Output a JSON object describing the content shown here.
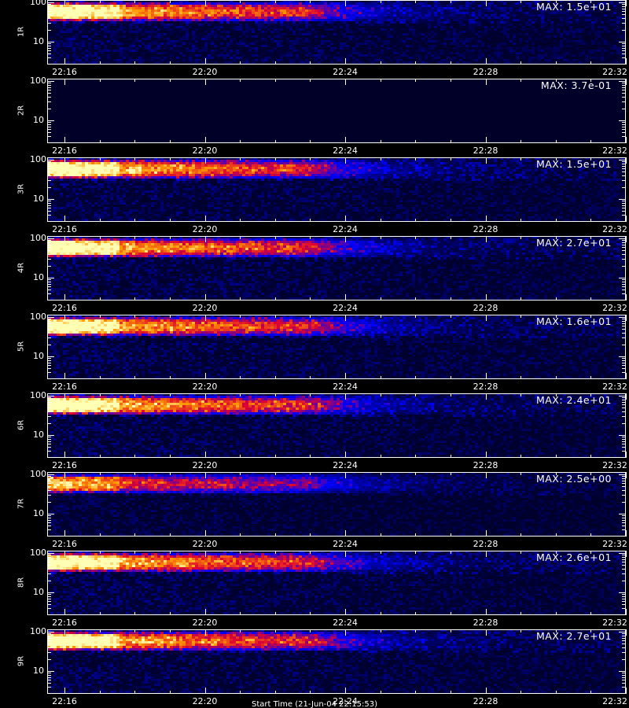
{
  "chart_data": [
    {
      "type": "heatmap",
      "panel": "1R",
      "max_label": "MAX: 1.5e+01",
      "intensity": 1.0,
      "ytick_labels": [
        "100",
        "10"
      ],
      "xtick_labels": [
        "22:16",
        "22:20",
        "22:24",
        "22:28",
        "22:32"
      ]
    },
    {
      "type": "heatmap",
      "panel": "2R",
      "max_label": "MAX: 3.7e-01",
      "intensity": 0.0,
      "ytick_labels": [
        "100",
        "10"
      ],
      "xtick_labels": [
        "22:16",
        "22:20",
        "22:24",
        "22:28",
        "22:32"
      ]
    },
    {
      "type": "heatmap",
      "panel": "3R",
      "max_label": "MAX: 1.5e+01",
      "intensity": 1.0,
      "ytick_labels": [
        "100",
        "10"
      ],
      "xtick_labels": [
        "22:16",
        "22:20",
        "22:24",
        "22:28",
        "22:32"
      ]
    },
    {
      "type": "heatmap",
      "panel": "4R",
      "max_label": "MAX: 2.7e+01",
      "intensity": 1.0,
      "ytick_labels": [
        "100",
        "10"
      ],
      "xtick_labels": [
        "22:16",
        "22:20",
        "22:24",
        "22:28",
        "22:32"
      ]
    },
    {
      "type": "heatmap",
      "panel": "5R",
      "max_label": "MAX: 1.6e+01",
      "intensity": 1.0,
      "ytick_labels": [
        "100",
        "10"
      ],
      "xtick_labels": [
        "22:16",
        "22:20",
        "22:24",
        "22:28",
        "22:32"
      ]
    },
    {
      "type": "heatmap",
      "panel": "6R",
      "max_label": "MAX: 2.4e+01",
      "intensity": 1.0,
      "ytick_labels": [
        "100",
        "10"
      ],
      "xtick_labels": [
        "22:16",
        "22:20",
        "22:24",
        "22:28",
        "22:32"
      ]
    },
    {
      "type": "heatmap",
      "panel": "7R",
      "max_label": "MAX: 2.5e+00",
      "intensity": 0.7,
      "ytick_labels": [
        "100",
        "10"
      ],
      "xtick_labels": [
        "22:16",
        "22:20",
        "22:24",
        "22:28",
        "22:32"
      ]
    },
    {
      "type": "heatmap",
      "panel": "8R",
      "max_label": "MAX: 2.6e+01",
      "intensity": 1.0,
      "ytick_labels": [
        "100",
        "10"
      ],
      "xtick_labels": [
        "22:16",
        "22:20",
        "22:24",
        "22:28",
        "22:32"
      ]
    },
    {
      "type": "heatmap",
      "panel": "9R",
      "max_label": "MAX: 2.7e+01",
      "intensity": 1.0,
      "ytick_labels": [
        "100",
        "10"
      ],
      "xtick_labels": [
        "22:16",
        "22:20",
        "22:24",
        "22:28",
        "22:32"
      ]
    }
  ],
  "footer_label": "Start Time (21-Jun-04 22:15:53)"
}
